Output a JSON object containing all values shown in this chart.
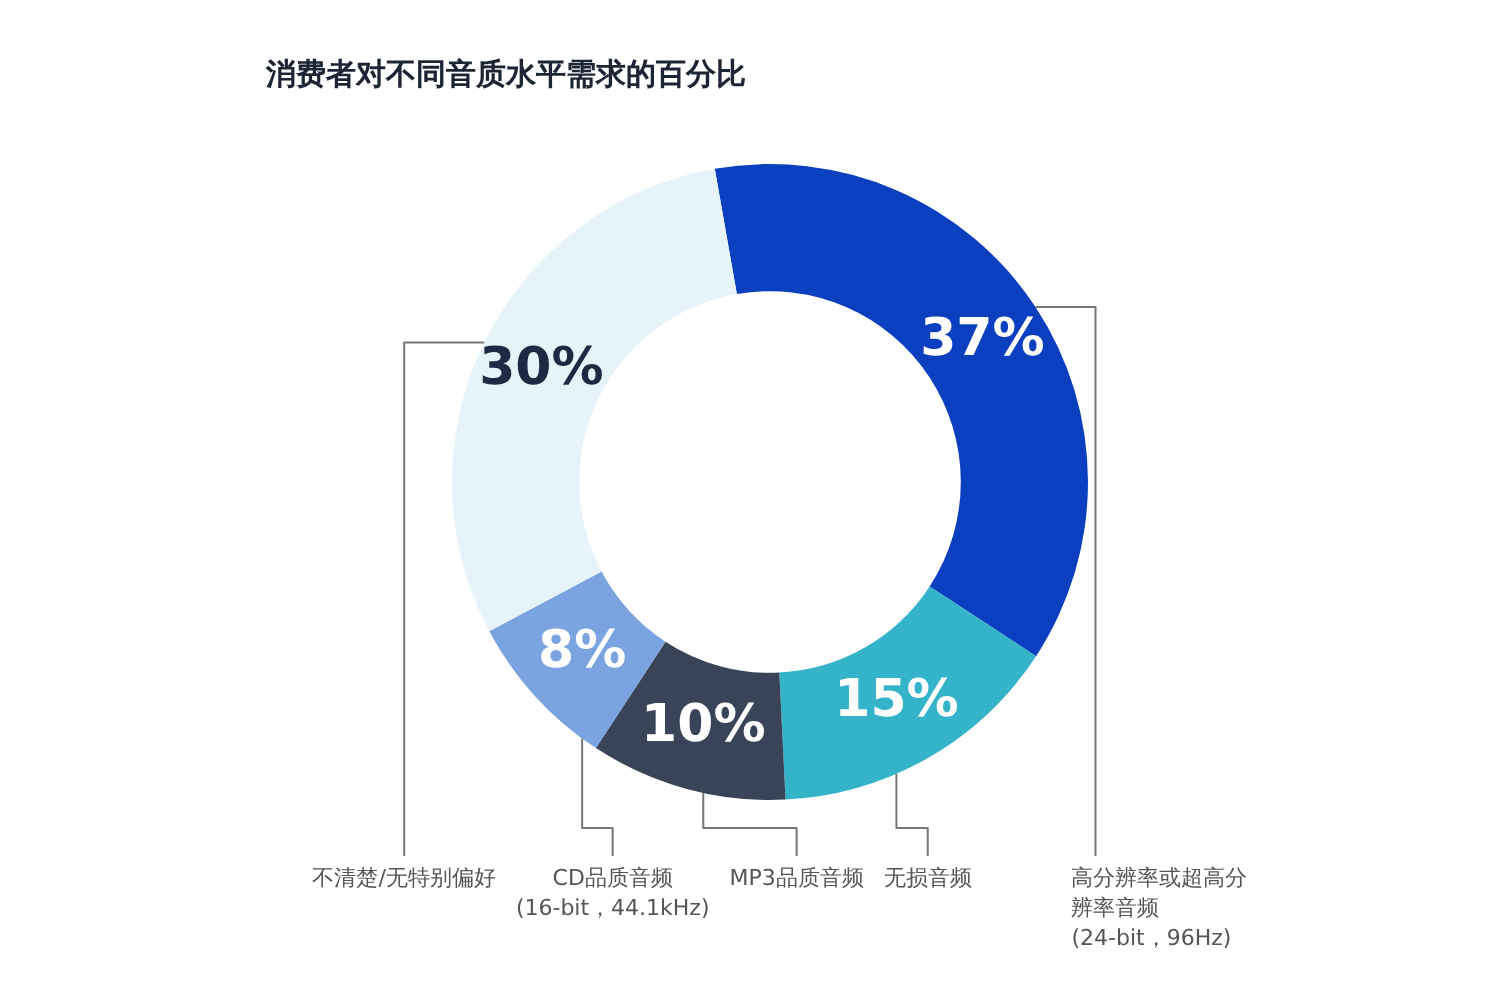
{
  "chart_data": {
    "type": "donut",
    "title": "消费者对不同音质水平需求的百分比",
    "categories": [
      "高分辨率或超高分辨率音频(24-bit，96Hz)",
      "无损音频",
      "MP3品质音频",
      "CD品质音频(16-bit，44.1kHz)",
      "不清楚/无特别偏好"
    ],
    "values": [
      37,
      15,
      10,
      8,
      30
    ],
    "colors": [
      "#0a3fbf",
      "#35b3c9",
      "#3a4458",
      "#7aa3e0",
      "#e6f3f8"
    ],
    "value_labels": [
      "37%",
      "15%",
      "10%",
      "8%",
      "30%"
    ],
    "legend": false
  }
}
